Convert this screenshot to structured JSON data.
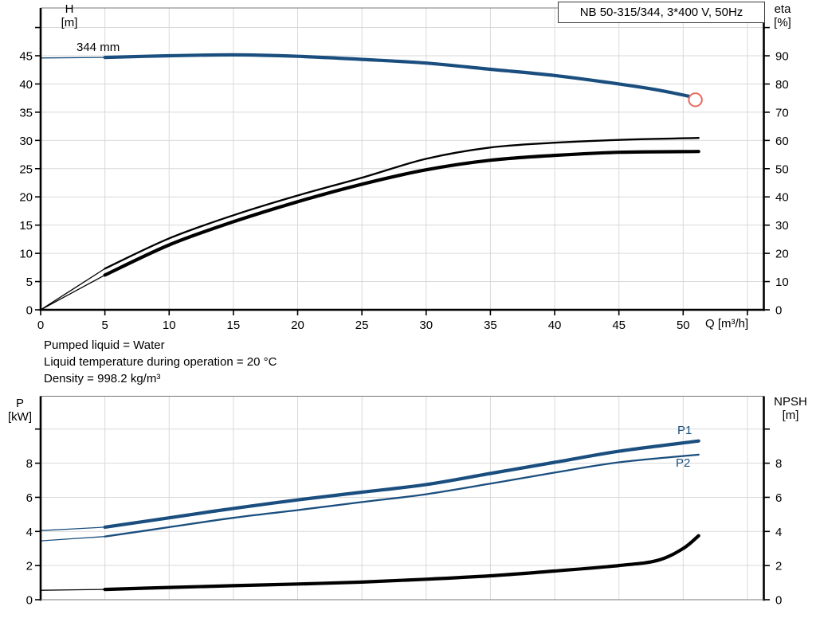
{
  "info_lines": [
    "Pumped liquid = Water",
    "Liquid temperature during operation = 20 °C",
    "Density = 998.2 kg/m³"
  ],
  "colors": {
    "curve_blue": "#1a4e7e",
    "curve_black": "#000000",
    "marker_red": "#e8685e",
    "grid": "#d9d9d9",
    "axis": "#000000",
    "thin_border": "#777777"
  },
  "chart_data": [
    {
      "type": "line",
      "title": "NB 50-315/344, 3*400 V, 50Hz",
      "xlabel": "Q [m³/h]",
      "x_axis": {
        "range": [
          0,
          56.3
        ],
        "grid": [
          5,
          10,
          15,
          20,
          25,
          30,
          35,
          40,
          45,
          50,
          55
        ],
        "ticks": [
          0,
          5,
          10,
          15,
          20,
          25,
          30,
          35,
          40,
          45,
          50,
          55
        ],
        "labels": [
          0,
          5,
          10,
          15,
          20,
          25,
          30,
          35,
          40,
          45,
          50
        ]
      },
      "left_axis": {
        "label": "H",
        "unit": "[m]",
        "range": [
          0,
          53.5
        ],
        "ticks": [
          0,
          5,
          10,
          15,
          20,
          25,
          30,
          35,
          40,
          45,
          50
        ],
        "labels": [
          0,
          5,
          10,
          15,
          20,
          25,
          30,
          35,
          40,
          45
        ]
      },
      "right_axis": {
        "label": "eta",
        "unit": "[%]",
        "range": [
          0,
          107
        ],
        "ticks": [
          0,
          10,
          20,
          30,
          40,
          50,
          60,
          70,
          80,
          90,
          100
        ],
        "labels": [
          0,
          10,
          20,
          30,
          40,
          50,
          60,
          70,
          80,
          90
        ]
      },
      "h_grid": [
        5,
        10,
        15,
        20,
        25,
        30,
        35,
        40,
        45,
        50
      ],
      "series": [
        {
          "name": "head-curve-344mm",
          "label": "344 mm",
          "axis": "left",
          "color": "blue",
          "weight": "heavy",
          "thick_from": 5,
          "points": [
            [
              0,
              44.6
            ],
            [
              5,
              44.7
            ],
            [
              10,
              45.0
            ],
            [
              15,
              45.15
            ],
            [
              20,
              44.9
            ],
            [
              25,
              44.35
            ],
            [
              30,
              43.7
            ],
            [
              35,
              42.6
            ],
            [
              40,
              41.5
            ],
            [
              45,
              40.0
            ],
            [
              48,
              38.95
            ],
            [
              50.4,
              37.85
            ]
          ],
          "end_marker": {
            "q": 50.95,
            "value": 37.2
          }
        },
        {
          "name": "eta-curve-upper",
          "label": "",
          "axis": "right",
          "color": "black",
          "weight": "light",
          "thick_from": 5,
          "points": [
            [
              0,
              0
            ],
            [
              5,
              14.6
            ],
            [
              10,
              25.3
            ],
            [
              15,
              33.5
            ],
            [
              20,
              40.5
            ],
            [
              25,
              46.8
            ],
            [
              30,
              53.5
            ],
            [
              35,
              57.5
            ],
            [
              40,
              59.2
            ],
            [
              45,
              60.2
            ],
            [
              51.2,
              60.9
            ]
          ]
        },
        {
          "name": "eta-curve-lower",
          "label": "",
          "axis": "right",
          "color": "black",
          "weight": "heavy",
          "thick_from": 5,
          "points": [
            [
              0,
              0
            ],
            [
              5,
              12.3
            ],
            [
              10,
              23.0
            ],
            [
              15,
              31.2
            ],
            [
              20,
              38.3
            ],
            [
              25,
              44.5
            ],
            [
              30,
              49.6
            ],
            [
              35,
              53.0
            ],
            [
              40,
              54.7
            ],
            [
              45,
              55.8
            ],
            [
              51.2,
              56.1
            ]
          ]
        }
      ]
    },
    {
      "type": "line",
      "title": "",
      "xlabel": "",
      "x_axis": {
        "range": [
          0,
          56.3
        ],
        "grid": [
          5,
          10,
          15,
          20,
          25,
          30,
          35,
          40,
          45,
          50,
          55
        ],
        "ticks": [],
        "labels": []
      },
      "left_axis": {
        "label": "P",
        "unit": "[kW]",
        "range": [
          0,
          11.9
        ],
        "ticks": [
          0,
          2,
          4,
          6,
          8,
          10
        ],
        "labels": [
          0,
          2,
          4,
          6,
          8
        ]
      },
      "right_axis": {
        "label": "NPSH",
        "unit": "[m]",
        "range": [
          0,
          11.9
        ],
        "ticks": [
          0,
          2,
          4,
          6,
          8,
          10
        ],
        "labels": [
          0,
          2,
          4,
          6,
          8
        ]
      },
      "h_grid": [
        2,
        4,
        6,
        8,
        10
      ],
      "series": [
        {
          "name": "p1-curve",
          "label": "P1",
          "axis": "left",
          "color": "blue",
          "weight": "heavy",
          "thick_from": 5,
          "points": [
            [
              0,
              4.05
            ],
            [
              5,
              4.25
            ],
            [
              10,
              4.8
            ],
            [
              15,
              5.35
            ],
            [
              20,
              5.85
            ],
            [
              25,
              6.3
            ],
            [
              30,
              6.75
            ],
            [
              35,
              7.4
            ],
            [
              40,
              8.05
            ],
            [
              45,
              8.7
            ],
            [
              51.2,
              9.3
            ]
          ]
        },
        {
          "name": "p2-curve",
          "label": "P2",
          "axis": "left",
          "color": "blue",
          "weight": "light",
          "thick_from": 5,
          "points": [
            [
              0,
              3.45
            ],
            [
              5,
              3.7
            ],
            [
              10,
              4.25
            ],
            [
              15,
              4.8
            ],
            [
              20,
              5.25
            ],
            [
              25,
              5.72
            ],
            [
              30,
              6.18
            ],
            [
              35,
              6.8
            ],
            [
              40,
              7.45
            ],
            [
              45,
              8.05
            ],
            [
              51.2,
              8.5
            ]
          ]
        },
        {
          "name": "npsh-curve",
          "label": "",
          "axis": "right",
          "color": "black",
          "weight": "heavy",
          "thick_from": 5,
          "points": [
            [
              0,
              0.55
            ],
            [
              5,
              0.6
            ],
            [
              10,
              0.72
            ],
            [
              15,
              0.82
            ],
            [
              20,
              0.92
            ],
            [
              25,
              1.03
            ],
            [
              30,
              1.2
            ],
            [
              35,
              1.4
            ],
            [
              40,
              1.68
            ],
            [
              45,
              2.0
            ],
            [
              48,
              2.3
            ],
            [
              50,
              3.0
            ],
            [
              51.2,
              3.75
            ]
          ]
        }
      ]
    }
  ]
}
